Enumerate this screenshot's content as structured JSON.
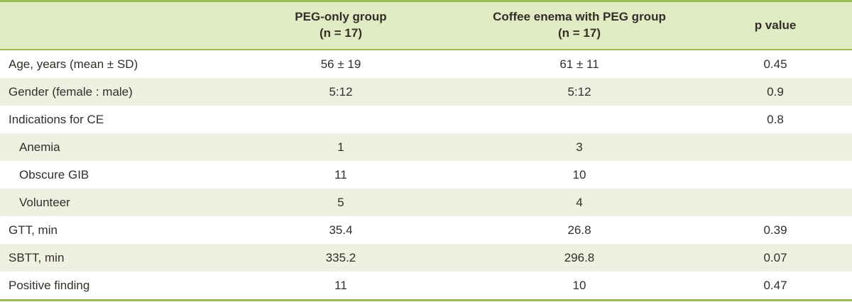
{
  "table": {
    "header": {
      "label_col": "",
      "peg_group_line1": "PEG-only group",
      "peg_group_line2": "(n = 17)",
      "coffee_group_line1": "Coffee enema with PEG group",
      "coffee_group_line2": "(n = 17)",
      "p_value": "p value"
    },
    "rows": [
      {
        "label": "Age, years (mean ± SD)",
        "peg": "56 ± 19",
        "coffee": "61 ± 11",
        "p": "0.45"
      },
      {
        "label": "Gender (female : male)",
        "peg": "5:12",
        "coffee": "5:12",
        "p": "0.9"
      },
      {
        "label": "Indications for CE",
        "peg": "",
        "coffee": "",
        "p": "0.8"
      },
      {
        "label": "Anemia",
        "peg": "1",
        "coffee": "3",
        "p": ""
      },
      {
        "label": "Obscure GIB",
        "peg": "11",
        "coffee": "10",
        "p": ""
      },
      {
        "label": "Volunteer",
        "peg": "5",
        "coffee": "4",
        "p": ""
      },
      {
        "label": "GTT, min",
        "peg": "35.4",
        "coffee": "26.8",
        "p": "0.39"
      },
      {
        "label": "SBTT, min",
        "peg": "335.2",
        "coffee": "296.8",
        "p": "0.07"
      },
      {
        "label": "Positive finding",
        "peg": "11",
        "coffee": "10",
        "p": "0.47"
      }
    ]
  },
  "chart_data": {
    "type": "table",
    "columns": [
      "",
      "PEG-only group (n = 17)",
      "Coffee enema with PEG group (n = 17)",
      "p value"
    ],
    "rows": [
      [
        "Age, years (mean ± SD)",
        "56 ± 19",
        "61 ± 11",
        "0.45"
      ],
      [
        "Gender (female : male)",
        "5:12",
        "5:12",
        "0.9"
      ],
      [
        "Indications for CE",
        "",
        "",
        "0.8"
      ],
      [
        "Anemia",
        "1",
        "3",
        ""
      ],
      [
        "Obscure GIB",
        "11",
        "10",
        ""
      ],
      [
        "Volunteer",
        "5",
        "4",
        ""
      ],
      [
        "GTT, min",
        "35.4",
        "26.8",
        "0.39"
      ],
      [
        "SBTT, min",
        "335.2",
        "296.8",
        "0.07"
      ],
      [
        "Positive finding",
        "11",
        "10",
        "0.47"
      ]
    ]
  },
  "colors": {
    "header_bg": "#e0ebc4",
    "stripe_bg": "#eef0e1",
    "border_green": "#9cbd55",
    "text": "#332e28"
  }
}
